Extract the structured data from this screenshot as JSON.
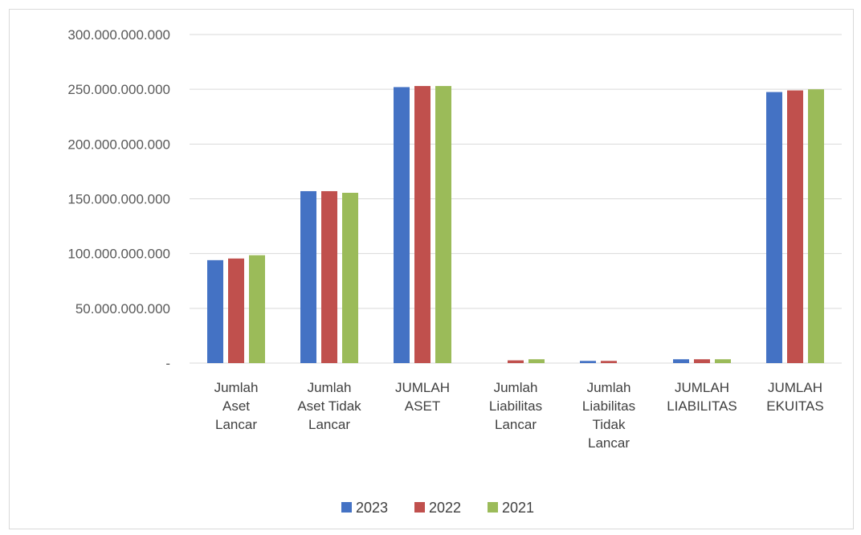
{
  "chart_data": {
    "type": "bar",
    "title": "",
    "xlabel": "",
    "ylabel": "",
    "ylim": [
      0,
      300000000000
    ],
    "yticks": [
      0,
      50000000000,
      100000000000,
      150000000000,
      200000000000,
      250000000000,
      300000000000
    ],
    "ytick_labels": [
      "-",
      "50.000.000.000",
      "100.000.000.000",
      "150.000.000.000",
      "200.000.000.000",
      "250.000.000.000",
      "300.000.000.000"
    ],
    "grid": "horizontal",
    "legend_position": "bottom",
    "categories": [
      [
        "Jumlah",
        "Aset",
        "Lancar"
      ],
      [
        "Jumlah",
        "Aset Tidak",
        "Lancar"
      ],
      [
        "JUMLAH",
        "ASET"
      ],
      [
        "Jumlah",
        "Liabilitas",
        "Lancar"
      ],
      [
        "Jumlah",
        "Liabilitas",
        "Tidak",
        "Lancar"
      ],
      [
        "JUMLAH",
        "LIABILITAS"
      ],
      [
        "JUMLAH",
        "EKUITAS"
      ]
    ],
    "series": [
      {
        "name": "2023",
        "color": "#4472c4",
        "values": [
          94000000000,
          157000000000,
          252000000000,
          0,
          2000000000,
          3500000000,
          247500000000
        ]
      },
      {
        "name": "2022",
        "color": "#c0504d",
        "values": [
          95500000000,
          157000000000,
          253000000000,
          2500000000,
          2000000000,
          3500000000,
          249000000000
        ]
      },
      {
        "name": "2021",
        "color": "#9bbb59",
        "values": [
          98500000000,
          155500000000,
          253000000000,
          3500000000,
          0,
          3500000000,
          250000000000
        ]
      }
    ]
  }
}
